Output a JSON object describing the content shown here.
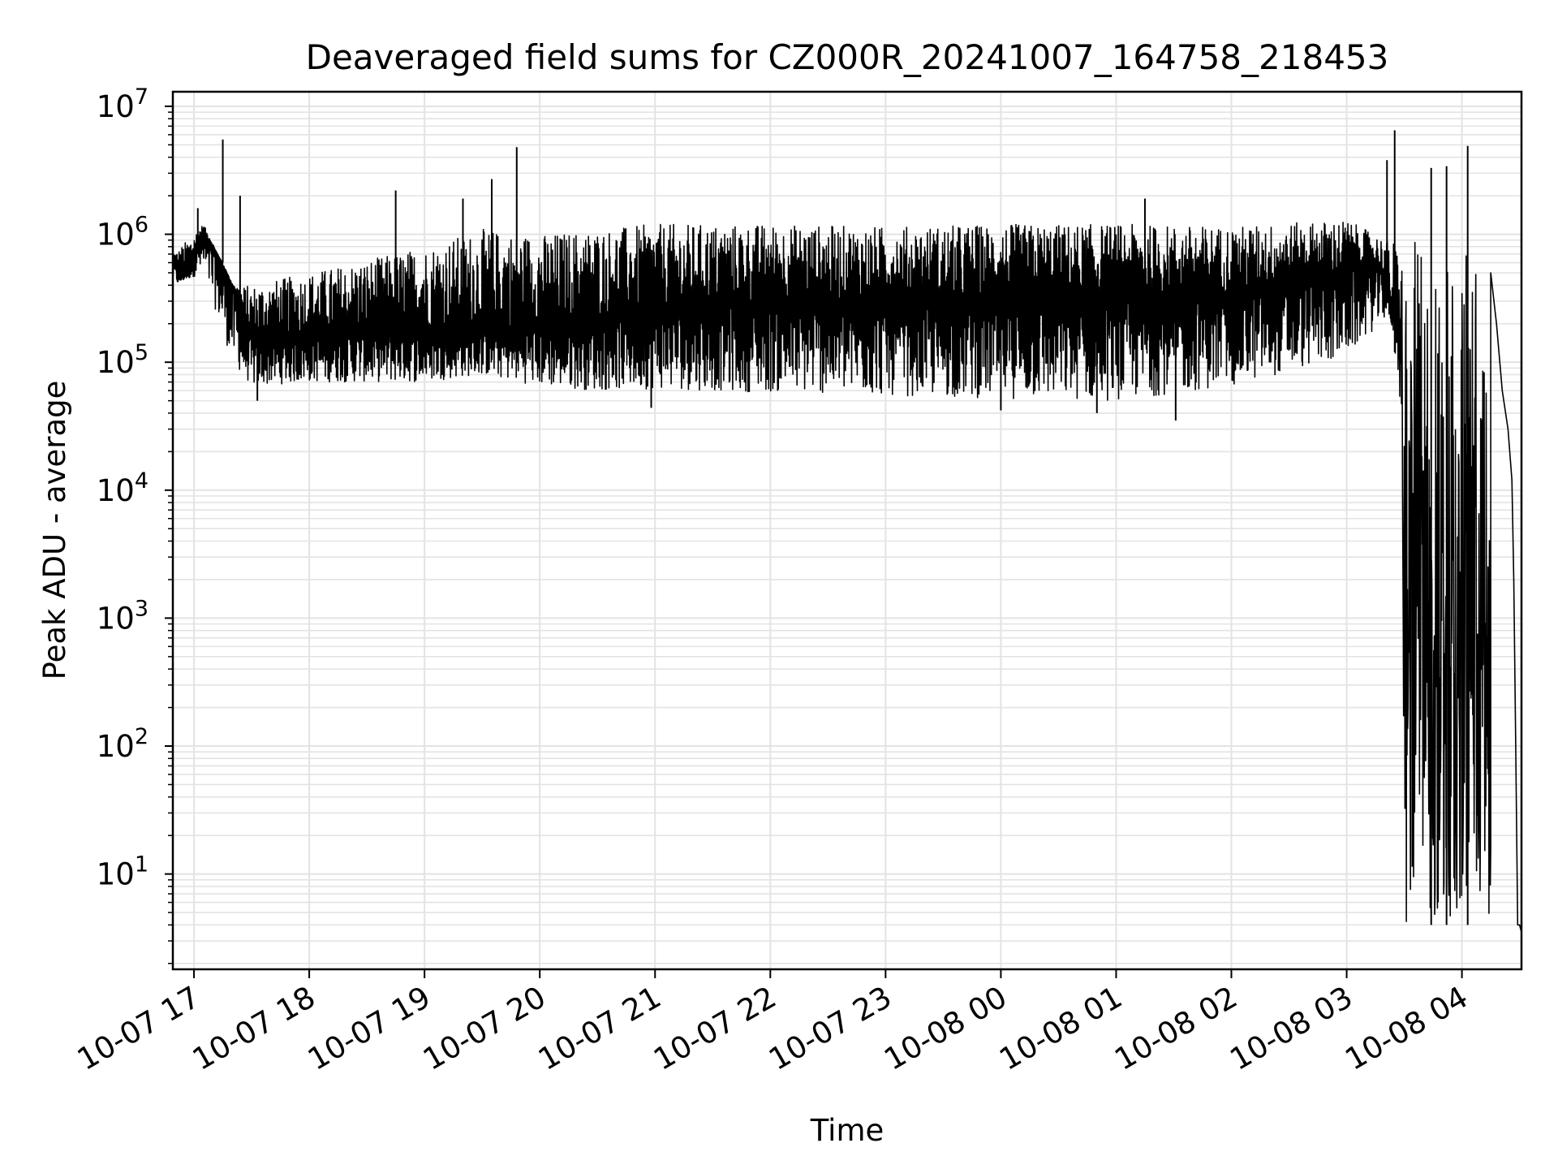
{
  "chart_data": {
    "type": "line",
    "title": "Deaveraged field sums for CZ000R_20241007_164758_218453",
    "xlabel": "Time",
    "ylabel": "Peak ADU - average",
    "yscale": "log",
    "ylim": [
      1.8,
      13000000
    ],
    "xlim": [
      "2024-10-07 16:49",
      "2024-10-08 04:31"
    ],
    "grid": "on (major and minor)",
    "line_color": "#000000",
    "x_tick_labels": [
      "10-07 17",
      "10-07 18",
      "10-07 19",
      "10-07 20",
      "10-07 21",
      "10-07 22",
      "10-07 23",
      "10-08 00",
      "10-08 01",
      "10-08 02",
      "10-08 03",
      "10-08 04"
    ],
    "x_tick_values": [
      "2024-10-07 17:00",
      "2024-10-07 18:00",
      "2024-10-07 19:00",
      "2024-10-07 20:00",
      "2024-10-07 21:00",
      "2024-10-07 22:00",
      "2024-10-07 23:00",
      "2024-10-08 00:00",
      "2024-10-08 01:00",
      "2024-10-08 02:00",
      "2024-10-08 03:00",
      "2024-10-08 04:00"
    ],
    "y_ticks": [
      {
        "base": "10",
        "exp": "1",
        "value": 10
      },
      {
        "base": "10",
        "exp": "2",
        "value": 100
      },
      {
        "base": "10",
        "exp": "3",
        "value": 1000
      },
      {
        "base": "10",
        "exp": "4",
        "value": 10000
      },
      {
        "base": "10",
        "exp": "5",
        "value": 100000
      },
      {
        "base": "10",
        "exp": "6",
        "value": 1000000
      },
      {
        "base": "10",
        "exp": "7",
        "value": 10000000
      }
    ],
    "series": [
      {
        "x": [
          "2024-10-07 16:49",
          "2024-10-07 16:52",
          "2024-10-07 16:58",
          "2024-10-07 17:04",
          "2024-10-07 17:08",
          "2024-10-07 17:15",
          "2024-10-07 17:22",
          "2024-10-07 17:26",
          "2024-10-07 17:30",
          "2024-10-07 17:45",
          "2024-10-07 18:00",
          "2024-10-07 18:30",
          "2024-10-07 19:00",
          "2024-10-07 19:30",
          "2024-10-07 20:00",
          "2024-10-07 21:00",
          "2024-10-07 22:00",
          "2024-10-07 23:00",
          "2024-10-08 00:00",
          "2024-10-08 01:00",
          "2024-10-08 02:00",
          "2024-10-08 02:30",
          "2024-10-08 03:00",
          "2024-10-08 03:10",
          "2024-10-08 03:20",
          "2024-10-08 03:25",
          "2024-10-08 03:28",
          "2024-10-08 03:29",
          "2024-10-08 03:30",
          "2024-10-08 04:30"
        ],
        "y": [
          700000,
          450000,
          550000,
          1000000,
          900000,
          600000,
          350000,
          180000,
          150000,
          150000,
          160000,
          170000,
          180000,
          170000,
          200000,
          250000,
          300000,
          280000,
          300000,
          300000,
          350000,
          400000,
          500000,
          600000,
          500000,
          120000,
          40000,
          10000,
          4,
          4
        ]
      }
    ],
    "upper_envelope": {
      "x": [
        "2024-10-07 16:49",
        "2024-10-07 17:05",
        "2024-10-07 17:20",
        "2024-10-07 17:30",
        "2024-10-07 18:00",
        "2024-10-07 19:00",
        "2024-10-07 19:30",
        "2024-10-07 20:00",
        "2024-10-07 20:30",
        "2024-10-07 21:00",
        "2024-10-07 22:00",
        "2024-10-07 23:00",
        "2024-10-08 00:00",
        "2024-10-08 01:00",
        "2024-10-08 02:00",
        "2024-10-08 03:00",
        "2024-10-08 03:20"
      ],
      "y": [
        700000,
        1200000,
        400000,
        400000,
        500000,
        800000,
        1100000,
        1000000,
        1100000,
        1200000,
        1200000,
        1150000,
        1200000,
        1200000,
        1150000,
        1300000,
        900000
      ]
    },
    "lower_envelope": {
      "x": [
        "2024-10-07 16:49",
        "2024-10-07 17:05",
        "2024-10-07 17:20",
        "2024-10-07 17:30",
        "2024-10-07 18:00",
        "2024-10-07 19:00",
        "2024-10-07 19:30",
        "2024-10-07 20:00",
        "2024-10-07 20:30",
        "2024-10-07 21:00",
        "2024-10-07 22:00",
        "2024-10-07 23:00",
        "2024-10-08 00:00",
        "2024-10-08 01:00",
        "2024-10-08 02:00",
        "2024-10-08 03:00",
        "2024-10-08 03:20"
      ],
      "y": [
        400000,
        500000,
        100000,
        65000,
        70000,
        70000,
        80000,
        65000,
        60000,
        62000,
        58000,
        55000,
        52000,
        50000,
        65000,
        110000,
        220000
      ]
    },
    "spikes": [
      {
        "x": "2024-10-07 17:02",
        "y": 1600000
      },
      {
        "x": "2024-10-07 17:15",
        "y": 5500000
      },
      {
        "x": "2024-10-07 17:24",
        "y": 2000000
      },
      {
        "x": "2024-10-07 18:45",
        "y": 2200000
      },
      {
        "x": "2024-10-07 19:20",
        "y": 1900000
      },
      {
        "x": "2024-10-07 19:35",
        "y": 2700000
      },
      {
        "x": "2024-10-07 19:48",
        "y": 4800000
      },
      {
        "x": "2024-10-08 01:15",
        "y": 1900000
      },
      {
        "x": "2024-10-08 03:21",
        "y": 3800000
      },
      {
        "x": "2024-10-08 03:25",
        "y": 6500000
      },
      {
        "x": "2024-10-08 03:44",
        "y": 3300000
      },
      {
        "x": "2024-10-08 03:52",
        "y": 3400000
      },
      {
        "x": "2024-10-08 04:03",
        "y": 4900000
      }
    ],
    "dips": [
      {
        "x": "2024-10-07 17:33",
        "y": 50000
      },
      {
        "x": "2024-10-07 20:58",
        "y": 44000
      },
      {
        "x": "2024-10-08 00:00",
        "y": 42000
      },
      {
        "x": "2024-10-08 00:50",
        "y": 40000
      },
      {
        "x": "2024-10-08 01:31",
        "y": 35000
      }
    ]
  }
}
